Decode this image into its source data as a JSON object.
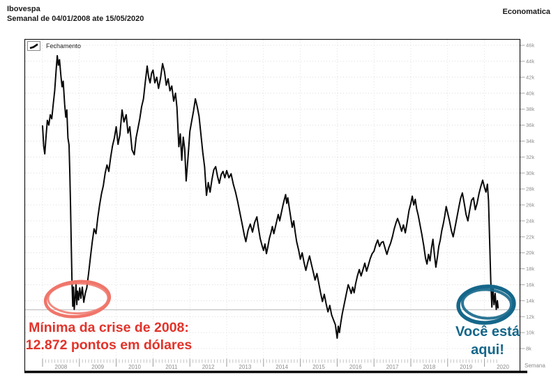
{
  "header": {
    "title": "Ibovespa",
    "subtitle": "Semanal de 04/01/2008 ate 15/05/2020",
    "brand": "Economatica"
  },
  "legend": {
    "label": "Fechamento"
  },
  "axis": {
    "x_years": [
      "2008",
      "2009",
      "2010",
      "2011",
      "2012",
      "2013",
      "2014",
      "2015",
      "2016",
      "2017",
      "2018",
      "2019",
      "2020"
    ],
    "x_axis_unit_label": "Semana",
    "y_ticks": [
      {
        "v": 46,
        "label": "46k"
      },
      {
        "v": 44,
        "label": "44k"
      },
      {
        "v": 42,
        "label": "42k"
      },
      {
        "v": 40,
        "label": "40k"
      },
      {
        "v": 38,
        "label": "38k"
      },
      {
        "v": 36,
        "label": "36k"
      },
      {
        "v": 34,
        "label": "34k"
      },
      {
        "v": 32,
        "label": "32k"
      },
      {
        "v": 30,
        "label": "30k"
      },
      {
        "v": 28,
        "label": "28k"
      },
      {
        "v": 26,
        "label": "26k"
      },
      {
        "v": 24,
        "label": "24k"
      },
      {
        "v": 22,
        "label": "22k"
      },
      {
        "v": 20,
        "label": "20k"
      },
      {
        "v": 18,
        "label": "18k"
      },
      {
        "v": 16,
        "label": "16k"
      },
      {
        "v": 14,
        "label": "14k"
      },
      {
        "v": 12,
        "label": "12k"
      },
      {
        "v": 10,
        "label": "10k"
      },
      {
        "v": 8,
        "label": "8k"
      }
    ]
  },
  "annotations": {
    "left": {
      "line1": "Mínima da crise de 2008:",
      "line2": "12.872 pontos em dólares",
      "text_color": "#e2332a",
      "ellipse_color": "#f0756a"
    },
    "right": {
      "line1": "Você está",
      "line2": "aqui!",
      "text_color": "#15678a",
      "ellipse_color": "#15678a"
    }
  },
  "chart_data": {
    "type": "line",
    "title": "Ibovespa",
    "subtitle": "Semanal de 04/01/2008 ate 15/05/2020",
    "x_label": "Semana",
    "x_range": [
      2008.0,
      2020.37
    ],
    "ylim": [
      8,
      46
    ],
    "y_unit": "k",
    "y_tick_step": 2,
    "grid": true,
    "legend_position": "top-left",
    "reference_line_y": 12.87,
    "line_color": "#0a0a0a",
    "series": [
      {
        "name": "Fechamento",
        "points": [
          [
            2008.0,
            35.9
          ],
          [
            2008.03,
            33.4
          ],
          [
            2008.06,
            32.4
          ],
          [
            2008.1,
            34.9
          ],
          [
            2008.13,
            36.6
          ],
          [
            2008.17,
            36.0
          ],
          [
            2008.21,
            37.3
          ],
          [
            2008.25,
            36.8
          ],
          [
            2008.29,
            38.6
          ],
          [
            2008.33,
            40.3
          ],
          [
            2008.37,
            42.9
          ],
          [
            2008.4,
            44.7
          ],
          [
            2008.43,
            43.5
          ],
          [
            2008.46,
            44.2
          ],
          [
            2008.5,
            42.1
          ],
          [
            2008.53,
            40.8
          ],
          [
            2008.56,
            41.5
          ],
          [
            2008.6,
            38.6
          ],
          [
            2008.63,
            37.0
          ],
          [
            2008.66,
            37.9
          ],
          [
            2008.69,
            34.4
          ],
          [
            2008.72,
            33.5
          ],
          [
            2008.74,
            30.0
          ],
          [
            2008.76,
            26.0
          ],
          [
            2008.78,
            20.8
          ],
          [
            2008.8,
            16.4
          ],
          [
            2008.82,
            13.3
          ],
          [
            2008.84,
            15.7
          ],
          [
            2008.86,
            12.9
          ],
          [
            2008.89,
            14.6
          ],
          [
            2008.91,
            16.1
          ],
          [
            2008.93,
            13.5
          ],
          [
            2008.95,
            15.2
          ],
          [
            2008.98,
            14.1
          ],
          [
            2009.01,
            15.6
          ],
          [
            2009.04,
            14.3
          ],
          [
            2009.08,
            15.7
          ],
          [
            2009.12,
            13.8
          ],
          [
            2009.16,
            14.9
          ],
          [
            2009.2,
            15.6
          ],
          [
            2009.25,
            17.4
          ],
          [
            2009.3,
            19.4
          ],
          [
            2009.35,
            21.4
          ],
          [
            2009.4,
            23.0
          ],
          [
            2009.45,
            22.4
          ],
          [
            2009.5,
            24.4
          ],
          [
            2009.55,
            26.0
          ],
          [
            2009.6,
            27.4
          ],
          [
            2009.65,
            28.4
          ],
          [
            2009.7,
            30.0
          ],
          [
            2009.75,
            31.0
          ],
          [
            2009.8,
            30.2
          ],
          [
            2009.85,
            32.0
          ],
          [
            2009.9,
            33.4
          ],
          [
            2009.95,
            34.4
          ],
          [
            2010.0,
            35.8
          ],
          [
            2010.05,
            33.6
          ],
          [
            2010.1,
            34.8
          ],
          [
            2010.16,
            37.9
          ],
          [
            2010.21,
            36.4
          ],
          [
            2010.27,
            37.3
          ],
          [
            2010.32,
            35.0
          ],
          [
            2010.37,
            35.8
          ],
          [
            2010.43,
            32.9
          ],
          [
            2010.49,
            32.3
          ],
          [
            2010.54,
            34.4
          ],
          [
            2010.59,
            35.6
          ],
          [
            2010.64,
            36.8
          ],
          [
            2010.69,
            38.3
          ],
          [
            2010.74,
            39.3
          ],
          [
            2010.79,
            41.4
          ],
          [
            2010.84,
            43.4
          ],
          [
            2010.88,
            42.0
          ],
          [
            2010.92,
            41.3
          ],
          [
            2010.96,
            42.5
          ],
          [
            2011.0,
            42.9
          ],
          [
            2011.05,
            41.3
          ],
          [
            2011.1,
            42.0
          ],
          [
            2011.15,
            40.6
          ],
          [
            2011.2,
            41.8
          ],
          [
            2011.26,
            43.7
          ],
          [
            2011.31,
            42.7
          ],
          [
            2011.36,
            41.0
          ],
          [
            2011.41,
            41.8
          ],
          [
            2011.46,
            40.3
          ],
          [
            2011.51,
            40.9
          ],
          [
            2011.56,
            39.0
          ],
          [
            2011.61,
            40.0
          ],
          [
            2011.65,
            38.2
          ],
          [
            2011.7,
            33.3
          ],
          [
            2011.74,
            34.9
          ],
          [
            2011.78,
            31.6
          ],
          [
            2011.82,
            34.5
          ],
          [
            2011.86,
            33.0
          ],
          [
            2011.9,
            29.0
          ],
          [
            2011.95,
            32.0
          ],
          [
            2012.0,
            35.2
          ],
          [
            2012.05,
            36.5
          ],
          [
            2012.1,
            37.8
          ],
          [
            2012.15,
            39.3
          ],
          [
            2012.2,
            38.3
          ],
          [
            2012.25,
            37.1
          ],
          [
            2012.3,
            34.9
          ],
          [
            2012.35,
            32.6
          ],
          [
            2012.4,
            30.8
          ],
          [
            2012.45,
            27.2
          ],
          [
            2012.5,
            28.8
          ],
          [
            2012.55,
            27.6
          ],
          [
            2012.6,
            29.2
          ],
          [
            2012.65,
            30.4
          ],
          [
            2012.7,
            30.8
          ],
          [
            2012.75,
            29.6
          ],
          [
            2012.8,
            28.7
          ],
          [
            2012.85,
            29.8
          ],
          [
            2012.9,
            30.2
          ],
          [
            2012.95,
            29.4
          ],
          [
            2013.0,
            30.3
          ],
          [
            2013.06,
            29.4
          ],
          [
            2013.12,
            29.9
          ],
          [
            2013.18,
            28.6
          ],
          [
            2013.24,
            27.6
          ],
          [
            2013.3,
            26.4
          ],
          [
            2013.36,
            25.0
          ],
          [
            2013.42,
            23.6
          ],
          [
            2013.48,
            22.2
          ],
          [
            2013.52,
            21.4
          ],
          [
            2013.58,
            22.8
          ],
          [
            2013.64,
            23.6
          ],
          [
            2013.7,
            22.6
          ],
          [
            2013.76,
            23.8
          ],
          [
            2013.82,
            24.5
          ],
          [
            2013.86,
            23.2
          ],
          [
            2013.91,
            21.8
          ],
          [
            2013.96,
            20.9
          ],
          [
            2014.0,
            20.3
          ],
          [
            2014.04,
            21.1
          ],
          [
            2014.08,
            19.9
          ],
          [
            2014.12,
            20.8
          ],
          [
            2014.16,
            21.8
          ],
          [
            2014.2,
            22.5
          ],
          [
            2014.24,
            23.3
          ],
          [
            2014.28,
            22.4
          ],
          [
            2014.32,
            23.2
          ],
          [
            2014.36,
            24.0
          ],
          [
            2014.4,
            24.8
          ],
          [
            2014.44,
            24.0
          ],
          [
            2014.48,
            24.9
          ],
          [
            2014.52,
            25.8
          ],
          [
            2014.56,
            26.6
          ],
          [
            2014.6,
            27.3
          ],
          [
            2014.63,
            26.2
          ],
          [
            2014.66,
            26.9
          ],
          [
            2014.7,
            25.6
          ],
          [
            2014.74,
            24.4
          ],
          [
            2014.78,
            23.2
          ],
          [
            2014.82,
            24.0
          ],
          [
            2014.86,
            22.6
          ],
          [
            2014.9,
            21.4
          ],
          [
            2014.95,
            20.4
          ],
          [
            2015.0,
            19.2
          ],
          [
            2015.05,
            20.0
          ],
          [
            2015.1,
            18.8
          ],
          [
            2015.15,
            17.8
          ],
          [
            2015.2,
            18.8
          ],
          [
            2015.25,
            19.6
          ],
          [
            2015.3,
            18.6
          ],
          [
            2015.35,
            17.6
          ],
          [
            2015.4,
            16.6
          ],
          [
            2015.45,
            17.4
          ],
          [
            2015.5,
            16.2
          ],
          [
            2015.55,
            15.0
          ],
          [
            2015.6,
            13.9
          ],
          [
            2015.65,
            14.8
          ],
          [
            2015.7,
            13.6
          ],
          [
            2015.75,
            12.6
          ],
          [
            2015.8,
            13.4
          ],
          [
            2015.85,
            12.2
          ],
          [
            2015.9,
            11.6
          ],
          [
            2015.95,
            11.0
          ],
          [
            2016.0,
            9.3
          ],
          [
            2016.03,
            10.8
          ],
          [
            2016.06,
            10.0
          ],
          [
            2016.1,
            11.3
          ],
          [
            2016.14,
            12.4
          ],
          [
            2016.18,
            13.3
          ],
          [
            2016.22,
            14.2
          ],
          [
            2016.26,
            15.1
          ],
          [
            2016.3,
            16.0
          ],
          [
            2016.34,
            15.5
          ],
          [
            2016.38,
            14.9
          ],
          [
            2016.42,
            15.7
          ],
          [
            2016.46,
            15.0
          ],
          [
            2016.5,
            16.1
          ],
          [
            2016.55,
            17.1
          ],
          [
            2016.6,
            17.9
          ],
          [
            2016.65,
            17.1
          ],
          [
            2016.7,
            17.9
          ],
          [
            2016.75,
            18.7
          ],
          [
            2016.8,
            17.7
          ],
          [
            2016.85,
            18.5
          ],
          [
            2016.9,
            19.3
          ],
          [
            2016.95,
            19.9
          ],
          [
            2017.0,
            20.2
          ],
          [
            2017.05,
            21.0
          ],
          [
            2017.1,
            21.6
          ],
          [
            2017.15,
            20.8
          ],
          [
            2017.2,
            21.3
          ],
          [
            2017.25,
            21.4
          ],
          [
            2017.3,
            20.6
          ],
          [
            2017.35,
            19.8
          ],
          [
            2017.4,
            20.6
          ],
          [
            2017.45,
            21.2
          ],
          [
            2017.5,
            22.0
          ],
          [
            2017.55,
            23.0
          ],
          [
            2017.6,
            23.8
          ],
          [
            2017.64,
            24.3
          ],
          [
            2017.7,
            23.5
          ],
          [
            2017.75,
            22.7
          ],
          [
            2017.8,
            23.5
          ],
          [
            2017.85,
            22.5
          ],
          [
            2017.9,
            23.8
          ],
          [
            2017.95,
            25.3
          ],
          [
            2018.0,
            26.2
          ],
          [
            2018.04,
            27.1
          ],
          [
            2018.08,
            26.0
          ],
          [
            2018.12,
            26.7
          ],
          [
            2018.16,
            25.5
          ],
          [
            2018.2,
            24.7
          ],
          [
            2018.25,
            23.5
          ],
          [
            2018.3,
            22.3
          ],
          [
            2018.35,
            20.9
          ],
          [
            2018.4,
            19.3
          ],
          [
            2018.44,
            18.6
          ],
          [
            2018.48,
            19.8
          ],
          [
            2018.52,
            19.0
          ],
          [
            2018.56,
            20.6
          ],
          [
            2018.6,
            21.7
          ],
          [
            2018.64,
            19.8
          ],
          [
            2018.68,
            18.2
          ],
          [
            2018.72,
            19.4
          ],
          [
            2018.76,
            20.8
          ],
          [
            2018.8,
            21.6
          ],
          [
            2018.84,
            22.8
          ],
          [
            2018.88,
            23.6
          ],
          [
            2018.92,
            24.6
          ],
          [
            2018.96,
            25.8
          ],
          [
            2019.0,
            25.0
          ],
          [
            2019.05,
            24.0
          ],
          [
            2019.1,
            22.8
          ],
          [
            2019.15,
            22.0
          ],
          [
            2019.2,
            23.2
          ],
          [
            2019.25,
            24.4
          ],
          [
            2019.3,
            25.6
          ],
          [
            2019.35,
            26.8
          ],
          [
            2019.4,
            27.5
          ],
          [
            2019.45,
            26.2
          ],
          [
            2019.5,
            24.8
          ],
          [
            2019.55,
            24.0
          ],
          [
            2019.6,
            25.4
          ],
          [
            2019.65,
            26.6
          ],
          [
            2019.7,
            26.9
          ],
          [
            2019.75,
            25.4
          ],
          [
            2019.8,
            26.2
          ],
          [
            2019.85,
            27.4
          ],
          [
            2019.9,
            28.3
          ],
          [
            2019.95,
            29.1
          ],
          [
            2020.0,
            28.2
          ],
          [
            2020.04,
            27.6
          ],
          [
            2020.08,
            28.6
          ],
          [
            2020.11,
            26.5
          ],
          [
            2020.14,
            21.5
          ],
          [
            2020.17,
            16.5
          ],
          [
            2020.2,
            13.2
          ],
          [
            2020.23,
            15.7
          ],
          [
            2020.26,
            13.5
          ],
          [
            2020.29,
            14.9
          ],
          [
            2020.32,
            12.9
          ],
          [
            2020.35,
            14.0
          ],
          [
            2020.37,
            13.1
          ]
        ]
      }
    ]
  }
}
